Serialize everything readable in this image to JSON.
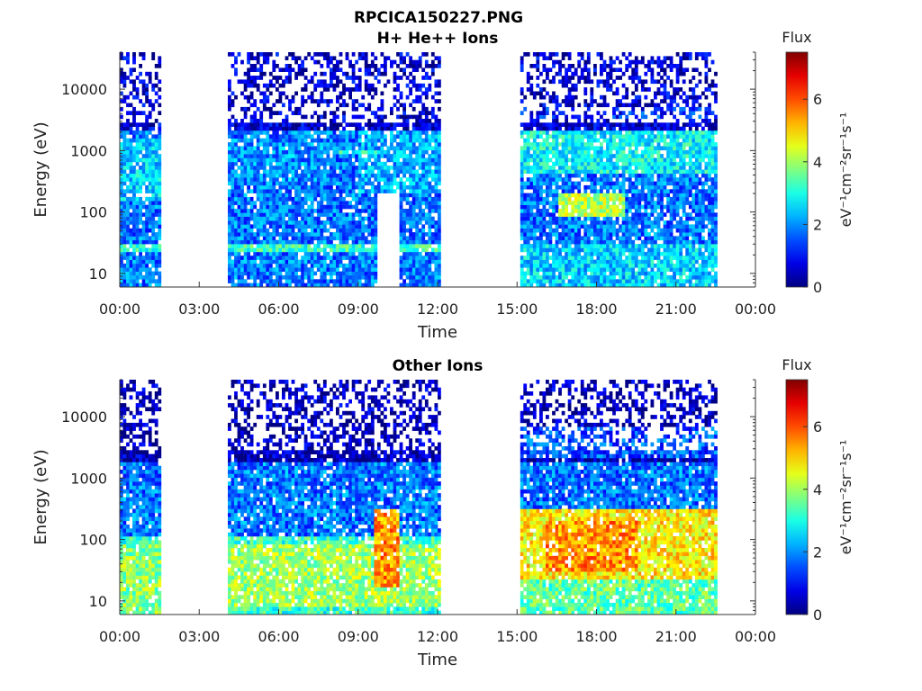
{
  "figure": {
    "title": "RPCICA150227.PNG"
  },
  "chart_data": [
    {
      "type": "heatmap",
      "title": "H+ He++ Ions",
      "xlabel": "Time",
      "ylabel": "Energy (eV)",
      "x_ticks": [
        "00:00",
        "03:00",
        "06:00",
        "09:00",
        "12:00",
        "15:00",
        "18:00",
        "21:00",
        "00:00"
      ],
      "xlim_hours": [
        0,
        24
      ],
      "y_scale": "log",
      "ylim": [
        6,
        40000
      ],
      "y_ticks": [
        {
          "value": 10,
          "label": "10"
        },
        {
          "value": 100,
          "label": "100"
        },
        {
          "value": 1000,
          "label": "1000"
        },
        {
          "value": 10000,
          "label": "10000"
        }
      ],
      "colorbar": {
        "label": "Flux",
        "unit_label": "eV⁻¹cm⁻²sr⁻¹s⁻¹",
        "range": [
          0,
          7.5
        ],
        "ticks": [
          "0",
          "2",
          "4",
          "6"
        ],
        "colormap": "jet"
      },
      "data_intervals_hours": [
        [
          0,
          1.5
        ],
        [
          4.0,
          12.0
        ],
        [
          15.0,
          22.5
        ]
      ],
      "features": [
        {
          "t": [
            0.0,
            1.5
          ],
          "e": [
            150,
            1500
          ],
          "flux": 2.5
        },
        {
          "t": [
            0.0,
            1.5
          ],
          "e": [
            20,
            30
          ],
          "flux": 3.0
        },
        {
          "t": [
            4.0,
            7.7
          ],
          "e": [
            300,
            1500
          ],
          "flux": 2.0
        },
        {
          "t": [
            4.0,
            12.0
          ],
          "e": [
            20,
            30
          ],
          "flux": 3.2
        },
        {
          "t": [
            8.0,
            9.7
          ],
          "e": [
            800,
            1000
          ],
          "flux": 3.0
        },
        {
          "t": [
            9.7,
            10.5
          ],
          "e": [
            6,
            200
          ],
          "flux": -1
        },
        {
          "t": [
            9.0,
            12.0
          ],
          "e": [
            200,
            2000
          ],
          "flux": 2.2
        },
        {
          "t": [
            15.0,
            22.5
          ],
          "e": [
            3000,
            5000
          ],
          "flux": 1.2
        },
        {
          "t": [
            15.0,
            22.5
          ],
          "e": [
            400,
            2000
          ],
          "flux": 2.8
        },
        {
          "t": [
            16.5,
            19.0
          ],
          "e": [
            80,
            200
          ],
          "flux": 4.2
        },
        {
          "t": [
            15.0,
            22.5
          ],
          "e": [
            6,
            30
          ],
          "flux": 2.5
        }
      ]
    },
    {
      "type": "heatmap",
      "title": "Other Ions",
      "xlabel": "Time",
      "ylabel": "Energy (eV)",
      "x_ticks": [
        "00:00",
        "03:00",
        "06:00",
        "09:00",
        "12:00",
        "15:00",
        "18:00",
        "21:00",
        "00:00"
      ],
      "xlim_hours": [
        0,
        24
      ],
      "y_scale": "log",
      "ylim": [
        6,
        40000
      ],
      "y_ticks": [
        {
          "value": 10,
          "label": "10"
        },
        {
          "value": 100,
          "label": "100"
        },
        {
          "value": 1000,
          "label": "1000"
        },
        {
          "value": 10000,
          "label": "10000"
        }
      ],
      "colorbar": {
        "label": "Flux",
        "unit_label": "eV⁻¹cm⁻²sr⁻¹s⁻¹",
        "range": [
          0,
          7.5
        ],
        "ticks": [
          "0",
          "2",
          "4",
          "6"
        ],
        "colormap": "jet"
      },
      "data_intervals_hours": [
        [
          0,
          1.5
        ],
        [
          4.0,
          12.0
        ],
        [
          15.0,
          22.5
        ]
      ],
      "features": [
        {
          "t": [
            0.0,
            1.5
          ],
          "e": [
            6,
            80
          ],
          "flux": 3.8
        },
        {
          "t": [
            4.0,
            12.0
          ],
          "e": [
            8,
            80
          ],
          "flux": 4.0
        },
        {
          "t": [
            9.5,
            10.5
          ],
          "e": [
            15,
            300
          ],
          "flux": 5.5
        },
        {
          "t": [
            15.0,
            22.5
          ],
          "e": [
            20,
            300
          ],
          "flux": 4.8
        },
        {
          "t": [
            16.0,
            19.5
          ],
          "e": [
            30,
            200
          ],
          "flux": 5.5
        },
        {
          "t": [
            15.0,
            22.5
          ],
          "e": [
            2000,
            6000
          ],
          "flux": 1.5
        },
        {
          "t": [
            15.0,
            22.5
          ],
          "e": [
            6,
            20
          ],
          "flux": 3.5
        }
      ]
    }
  ]
}
